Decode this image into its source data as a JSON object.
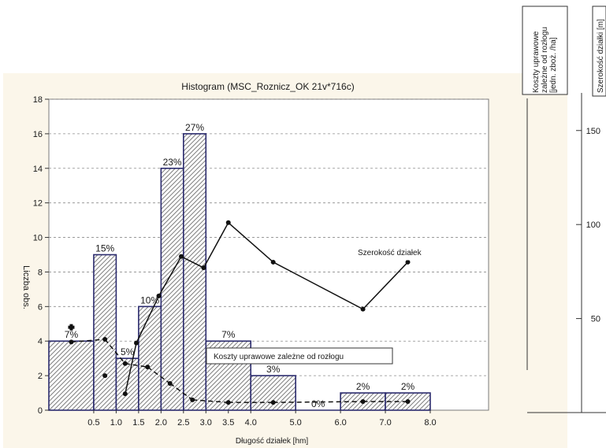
{
  "chart_data": {
    "type": "bar",
    "title": "Histogram (MSC_Roznicz_OK 21v*716c)",
    "xlabel": "Długość działek [hm]",
    "ylabel": "Liczba obs.",
    "ylim": [
      0,
      18
    ],
    "yticks": [
      0,
      2,
      4,
      6,
      8,
      10,
      12,
      14,
      16,
      18
    ],
    "xlim": [
      -0.5,
      9.3
    ],
    "xticks": [
      {
        "label": "0.5",
        "x": 0.5
      },
      {
        "label": "1.0",
        "x": 1.0
      },
      {
        "label": "1.5",
        "x": 1.5
      },
      {
        "label": "2.0",
        "x": 2.0
      },
      {
        "label": "2.5",
        "x": 2.5
      },
      {
        "label": "3.0",
        "x": 3.0
      },
      {
        "label": "3.5",
        "x": 3.5
      },
      {
        "label": "4.0",
        "x": 4.0
      },
      {
        "label": "5.0",
        "x": 5.0
      },
      {
        "label": "6.0",
        "x": 6.0
      },
      {
        "label": "7.0",
        "x": 7.0
      },
      {
        "label": "8.0",
        "x": 8.0
      }
    ],
    "bars": [
      {
        "x0": -0.5,
        "x1": 0.5,
        "value": 4,
        "label": "7%"
      },
      {
        "x0": 0.5,
        "x1": 1.0,
        "value": 9,
        "label": "15%"
      },
      {
        "x0": 1.0,
        "x1": 1.5,
        "value": 3,
        "label": "5%"
      },
      {
        "x0": 1.5,
        "x1": 2.0,
        "value": 6,
        "label": "10%"
      },
      {
        "x0": 2.0,
        "x1": 2.5,
        "value": 14,
        "label": "23%"
      },
      {
        "x0": 2.5,
        "x1": 3.0,
        "value": 16,
        "label": "27%"
      },
      {
        "x0": 3.0,
        "x1": 4.0,
        "value": 4,
        "label": "7%"
      },
      {
        "x0": 4.0,
        "x1": 5.0,
        "value": 2,
        "label": "3%"
      },
      {
        "x0": 5.0,
        "x1": 6.0,
        "value": 0,
        "label": "0%"
      },
      {
        "x0": 6.0,
        "x1": 7.0,
        "value": 1,
        "label": "2%"
      },
      {
        "x0": 7.0,
        "x1": 8.0,
        "value": 1,
        "label": "2%"
      }
    ],
    "series": [
      {
        "name": "Szerokość działek",
        "axis": "right2",
        "style": "solid",
        "points": [
          {
            "x": 1.2,
            "y": 10
          },
          {
            "x": 1.45,
            "y": 37
          },
          {
            "x": 1.95,
            "y": 62
          },
          {
            "x": 2.45,
            "y": 83
          },
          {
            "x": 2.95,
            "y": 77
          },
          {
            "x": 3.5,
            "y": 101
          },
          {
            "x": 4.5,
            "y": 80
          },
          {
            "x": 6.5,
            "y": 55
          },
          {
            "x": 7.5,
            "y": 80
          }
        ]
      },
      {
        "name": "Koszty uprawowe zależne od rozłogu",
        "axis": "right1",
        "style": "dashed",
        "points": [
          {
            "x": 0,
            "y": 3.95
          },
          {
            "x": 0.75,
            "y": 4.1
          },
          {
            "x": 1.2,
            "y": 2.7
          },
          {
            "x": 1.7,
            "y": 2.5
          },
          {
            "x": 2.2,
            "y": 1.55
          },
          {
            "x": 2.7,
            "y": 0.6
          },
          {
            "x": 3.5,
            "y": 0.45
          },
          {
            "x": 4.5,
            "y": 0.45
          },
          {
            "x": 6.5,
            "y": 0.5
          },
          {
            "x": 7.5,
            "y": 0.5
          }
        ]
      }
    ],
    "extra_markers": [
      {
        "x": 0,
        "y": 4.8,
        "axis": "left",
        "symbol": "plus"
      },
      {
        "x": 0.75,
        "y": 2.0,
        "axis": "left",
        "symbol": "dot"
      }
    ],
    "right_axis_1": {
      "label_lines": [
        "Koszty uprawowe",
        "zależne od rozłogu",
        "[jedn. zboż. /ha]"
      ],
      "ticks": [],
      "ylim": [
        0,
        18
      ]
    },
    "right_axis_2": {
      "label": "Szerokość działki [m]",
      "ticks": [
        50,
        100,
        150
      ],
      "ylim": [
        0,
        170
      ]
    },
    "annotations": [
      {
        "text": "Szerokość działek",
        "anchor_x": 4.15,
        "anchor_y": 8.9
      },
      {
        "text": "Koszty uprawowe zależne od rozłogu",
        "anchor_x": 1.55,
        "anchor_y": 3.1
      }
    ],
    "grid": true,
    "legend": "none"
  }
}
